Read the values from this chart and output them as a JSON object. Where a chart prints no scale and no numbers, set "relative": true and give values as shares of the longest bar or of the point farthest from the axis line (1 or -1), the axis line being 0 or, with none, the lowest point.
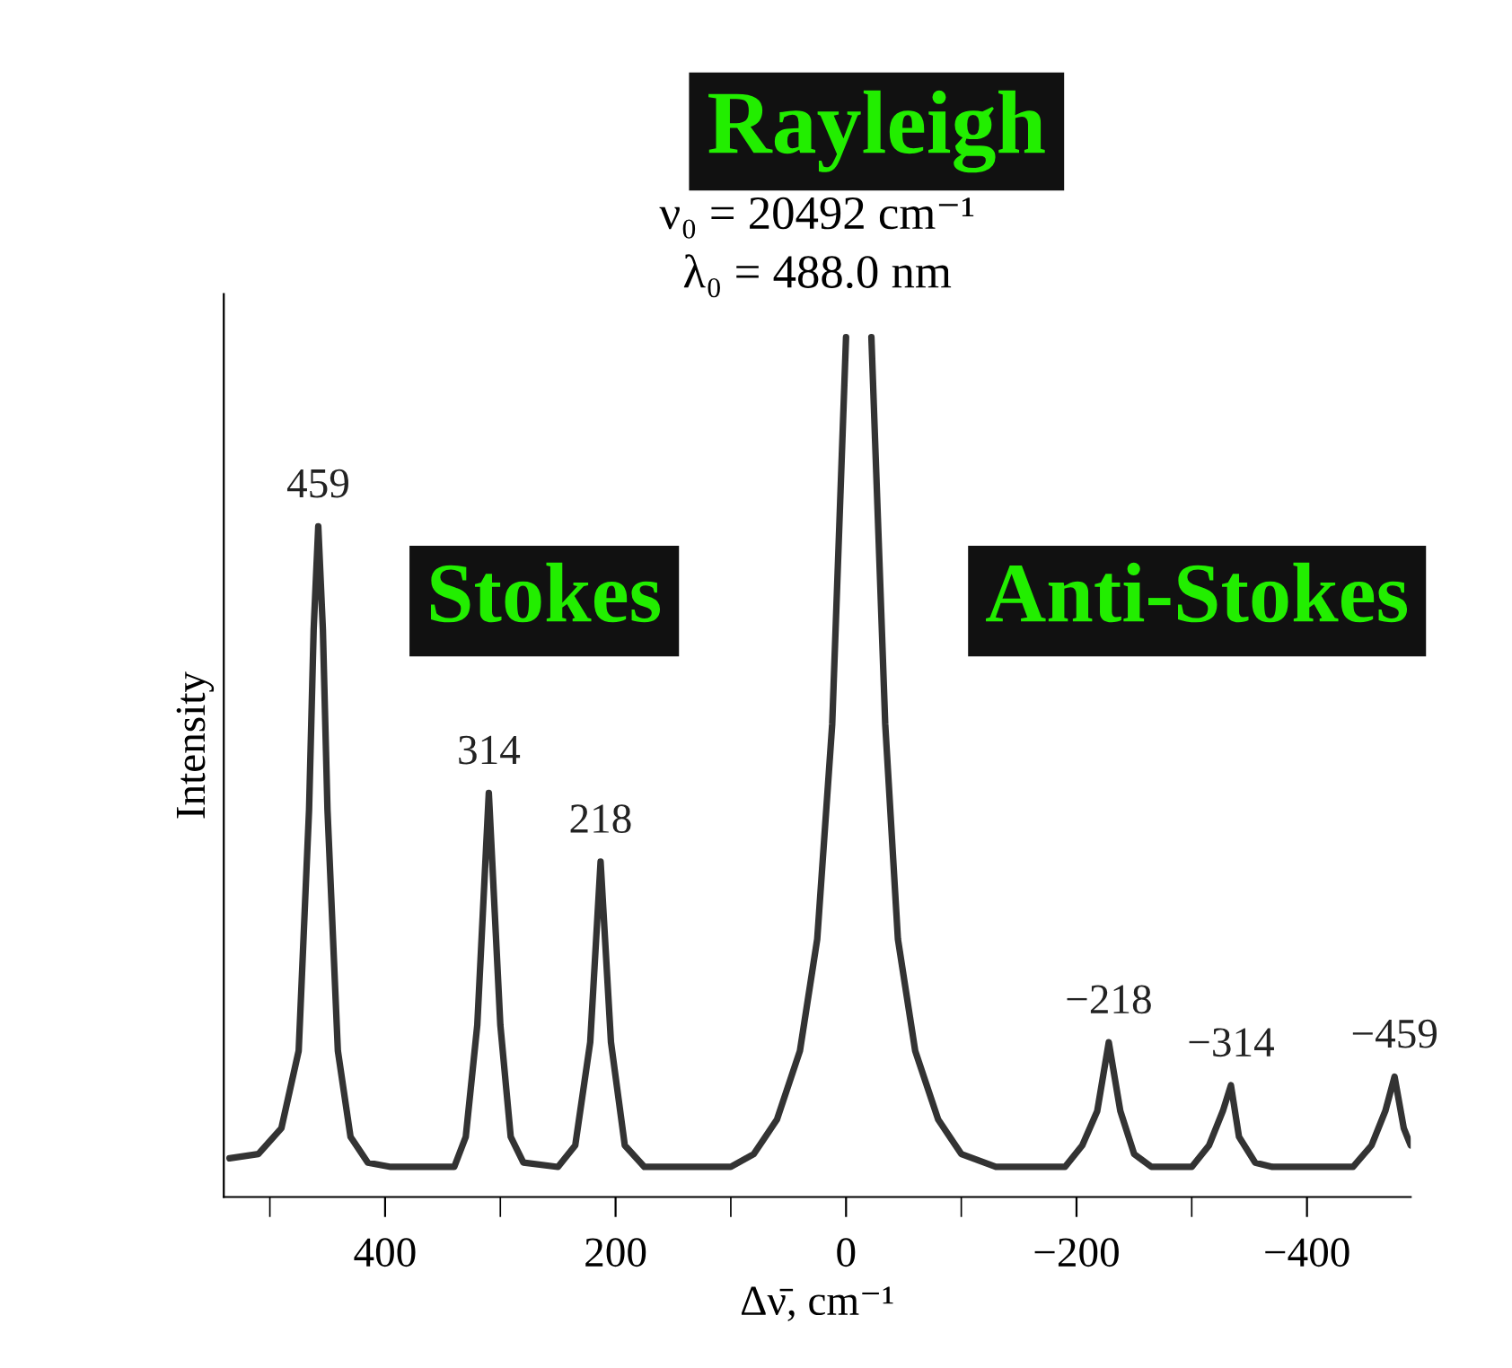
{
  "chart_data": {
    "type": "line",
    "relative": true,
    "xlabel": "Δν̄, cm⁻¹",
    "ylabel": "Intensity",
    "color": "#333333",
    "marker": "none",
    "line_style": "solid",
    "grid": false,
    "legend": false,
    "xlim": [
      540,
      -490
    ],
    "xticks": [
      {
        "value": 500,
        "label": null
      },
      400,
      {
        "value": 300,
        "label": null
      },
      200,
      {
        "value": 100,
        "label": null
      },
      0,
      {
        "value": -100,
        "label": null
      },
      {
        "value": -200,
        "label": "−200"
      },
      {
        "value": -300,
        "label": null
      },
      {
        "value": -400,
        "label": "−400"
      }
    ],
    "x": [
      535,
      510,
      490,
      475,
      466,
      462,
      458,
      454,
      450,
      441,
      430,
      415,
      395,
      340,
      330,
      320,
      310,
      300,
      291,
      280,
      250,
      235,
      222,
      213,
      204,
      192,
      175,
      100,
      80,
      60,
      40,
      25,
      12,
      0,
      -11,
      -22,
      -34,
      -45,
      -60,
      -80,
      -100,
      -130,
      -190,
      -205,
      -218,
      -228,
      -238,
      -250,
      -265,
      -300,
      -315,
      -327,
      -334,
      -341,
      -355,
      -370,
      -440,
      -456,
      -468,
      -476,
      -484,
      -490
    ],
    "values": [
      0.045,
      0.05,
      0.08,
      0.17,
      0.45,
      0.66,
      0.78,
      0.66,
      0.45,
      0.17,
      0.07,
      0.04,
      0.035,
      0.035,
      0.07,
      0.2,
      0.47,
      0.2,
      0.07,
      0.04,
      0.035,
      0.06,
      0.18,
      0.39,
      0.18,
      0.06,
      0.035,
      0.035,
      0.05,
      0.09,
      0.17,
      0.3,
      0.55,
      1.0,
      null,
      1.0,
      0.55,
      0.3,
      0.17,
      0.09,
      0.05,
      0.035,
      0.035,
      0.06,
      0.1,
      0.18,
      0.1,
      0.05,
      0.035,
      0.035,
      0.06,
      0.1,
      0.13,
      0.07,
      0.04,
      0.035,
      0.035,
      0.06,
      0.1,
      0.14,
      0.08,
      0.06
    ],
    "annotations": [
      {
        "text": "459",
        "x": 458,
        "y": 0.78
      },
      {
        "text": "314",
        "x": 310,
        "y": 0.47
      },
      {
        "text": "218",
        "x": 213,
        "y": 0.39
      },
      {
        "text": "−218",
        "x": -228,
        "y": 0.18
      },
      {
        "text": "−314",
        "x": -334,
        "y": 0.13
      },
      {
        "text": "−459",
        "x": -476,
        "y": 0.14
      },
      "ν₀ = 20492 cm⁻¹",
      "λ₀ = 488.0 nm",
      "Rayleigh",
      "Stokes",
      "Anti-Stokes"
    ]
  }
}
